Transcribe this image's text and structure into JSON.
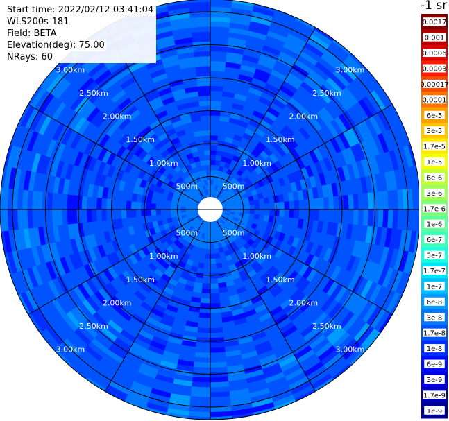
{
  "header": {
    "start_time": "Start time: 2022/02/12 03:41:04",
    "instrument": "WLS200s-181",
    "field": "Field: BETA",
    "elevation": "Elevation(deg): 75.00",
    "nrays": "NRays: 60"
  },
  "colorbar": {
    "unit_title": "-1 sr",
    "labels": [
      "0.0017",
      "0.001",
      "0.0006",
      "0.0003",
      "0.00017",
      "0.0001",
      "6e-5",
      "3e-5",
      "1.7e-5",
      "1e-5",
      "6e-6",
      "3e-6",
      "1.7e-6",
      "1e-6",
      "6e-7",
      "3e-7",
      "1.7e-7",
      "1e-7",
      "6e-8",
      "3e-8",
      "1.7e-8",
      "1e-8",
      "6e-9",
      "3e-9",
      "1.7e-9",
      "1e-9"
    ],
    "colors": [
      "#7f0000",
      "#b20000",
      "#dd0000",
      "#ff1a00",
      "#ff4800",
      "#ff7300",
      "#ff9e00",
      "#ffc400",
      "#ffe900",
      "#f0ff06",
      "#c1ff36",
      "#a0ff57",
      "#7dff7a",
      "#5dff9a",
      "#3dffba",
      "#1affdd",
      "#00e4f8",
      "#00c0ff",
      "#009cff",
      "#0078ff",
      "#0054ff",
      "#0030ff",
      "#000cff",
      "#0000e3",
      "#0000b9",
      "#00008f"
    ]
  },
  "chart_data": {
    "type": "heatmap",
    "projection": "polar PPI",
    "field": "BETA",
    "units": "-1 sr",
    "n_rays": 60,
    "elevation_deg": 75.0,
    "range_ring_labels": [
      "500m",
      "1.00km",
      "1.50km",
      "2.00km",
      "2.50km",
      "3.00km"
    ],
    "range_rings_km": [
      0.5,
      1.0,
      1.5,
      2.0,
      2.5,
      3.0
    ],
    "spokes_deg": [
      0,
      30,
      60,
      90,
      120,
      150,
      180,
      210,
      240,
      270,
      300,
      330
    ],
    "value_range_visible": [
      "3e-9",
      "3e-8"
    ],
    "dominant_values": [
      "6e-9",
      "1e-8",
      "1.7e-8",
      "3e-8"
    ]
  }
}
